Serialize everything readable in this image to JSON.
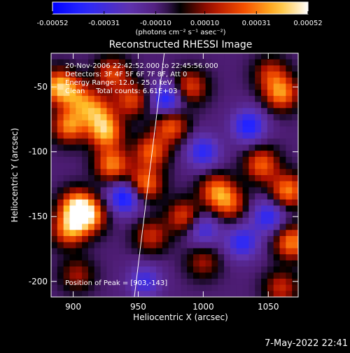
{
  "chart_data": {
    "type": "heatmap",
    "title": "Reconstructed RHESSI Image",
    "xlabel": "Heliocentric X (arcsec)",
    "ylabel": "Heliocentric Y (arcsec)",
    "xlim": [
      883,
      1073
    ],
    "ylim": [
      -212,
      -24
    ],
    "x_ticks": [
      900,
      950,
      1000,
      1050
    ],
    "y_ticks": [
      -50,
      -100,
      -150,
      -200
    ],
    "colorbar": {
      "range": [
        -0.00052,
        0.00052
      ],
      "tick_values": [
        -0.00052,
        -0.00031,
        -0.0001,
        0.0001,
        0.00031,
        0.00052
      ],
      "tick_labels": [
        "-0.00052",
        "-0.00031",
        "-0.00010",
        "0.00010",
        "0.00031",
        "0.00052"
      ],
      "units_label": "(photons cm⁻² s⁻¹ asec⁻²)"
    },
    "annotations": [
      "20-Nov-2006 22:42:52.000 to 22:45:56.000",
      "Detectors: 3F 4F 5F 6F 7F 8F, Att 0",
      "Energy Range: 12.0 - 25.0 keV",
      "Clean     Total counts: 6.61E+03"
    ],
    "peak_label": "Position of Peak = [903,-143]",
    "peak_position": [
      903,
      -143
    ],
    "limb_line": [
      [
        947,
        -212
      ],
      [
        970,
        -24
      ]
    ],
    "hotspots": [
      [
        890,
        -50,
        0.0005
      ],
      [
        897,
        -80,
        0.0004
      ],
      [
        905,
        -60,
        0.0003
      ],
      [
        903,
        -143,
        0.00052
      ],
      [
        897,
        -160,
        0.0004
      ],
      [
        912,
        -150,
        0.0004
      ],
      [
        925,
        -85,
        0.00045
      ],
      [
        918,
        -70,
        0.00035
      ],
      [
        930,
        -110,
        0.0004
      ],
      [
        945,
        -60,
        0.0003
      ],
      [
        955,
        -125,
        0.0004
      ],
      [
        960,
        -100,
        0.00035
      ],
      [
        975,
        -80,
        0.00035
      ],
      [
        990,
        -50,
        0.0003
      ],
      [
        985,
        -150,
        0.0003
      ],
      [
        1010,
        -130,
        0.00035
      ],
      [
        1020,
        -140,
        0.0003
      ],
      [
        1045,
        -110,
        0.00035
      ],
      [
        1060,
        -55,
        0.0004
      ],
      [
        1065,
        -130,
        0.0004
      ],
      [
        1068,
        -170,
        0.0004
      ],
      [
        1052,
        -40,
        0.00025
      ],
      [
        930,
        -40,
        0.0003
      ],
      [
        1000,
        -185,
        0.0002
      ],
      [
        1060,
        -205,
        0.00025
      ],
      [
        903,
        -195,
        0.0002
      ],
      [
        960,
        -165,
        0.00025
      ]
    ],
    "coldspots": [
      [
        940,
        -135,
        -0.0004
      ],
      [
        972,
        -60,
        -0.00035
      ],
      [
        1000,
        -100,
        -0.0003
      ],
      [
        1035,
        -80,
        -0.00035
      ],
      [
        1030,
        -170,
        -0.0003
      ],
      [
        955,
        -200,
        -0.00025
      ],
      [
        1000,
        -160,
        -0.00025
      ],
      [
        1050,
        -150,
        -0.0003
      ]
    ]
  },
  "footer": {
    "timestamp": "7-May-2022 22:41"
  }
}
